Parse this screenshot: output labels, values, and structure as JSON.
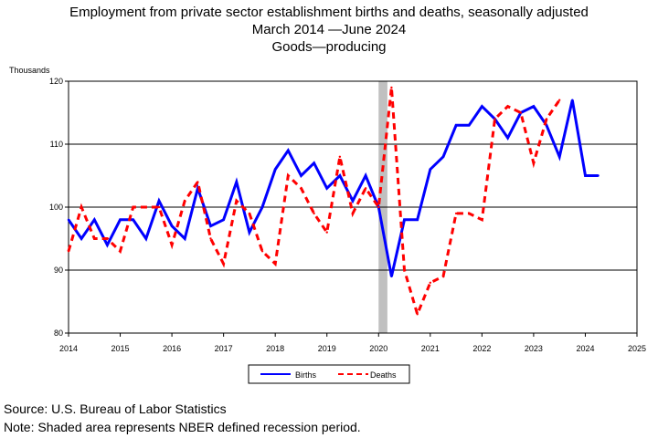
{
  "chart_data": {
    "type": "line",
    "title": "Employment from private sector establishment births and deaths, seasonally adjusted",
    "subtitle": "March 2014 —June 2024",
    "subtitle2": "Goods—producing",
    "ylabel": "Thousands",
    "xlabel": "",
    "xlim": [
      2014.0,
      2025.0
    ],
    "ylim": [
      80,
      120
    ],
    "xticks": [
      "2014",
      "2015",
      "2016",
      "2017",
      "2018",
      "2019",
      "2020",
      "2021",
      "2022",
      "2023",
      "2024",
      "2025"
    ],
    "yticks": [
      "80",
      "90",
      "100",
      "110",
      "120"
    ],
    "grid": "horizontal",
    "legend_position": "bottom-center",
    "recession": {
      "start": 2020.0,
      "end": 2020.17,
      "color": "#c0c0c0"
    },
    "series": [
      {
        "name": "Births",
        "color": "#0000ff",
        "style": "solid",
        "x": [
          2014.0,
          2014.25,
          2014.5,
          2014.75,
          2015.0,
          2015.25,
          2015.5,
          2015.75,
          2016.0,
          2016.25,
          2016.5,
          2016.75,
          2017.0,
          2017.25,
          2017.5,
          2017.75,
          2018.0,
          2018.25,
          2018.5,
          2018.75,
          2019.0,
          2019.25,
          2019.5,
          2019.75,
          2020.0,
          2020.25,
          2020.5,
          2020.75,
          2021.0,
          2021.25,
          2021.5,
          2021.75,
          2022.0,
          2022.25,
          2022.5,
          2022.75,
          2023.0,
          2023.25,
          2023.5,
          2023.75,
          2024.0,
          2024.25
        ],
        "values": [
          98,
          95,
          98,
          94,
          98,
          98,
          95,
          101,
          97,
          95,
          103,
          97,
          98,
          104,
          96,
          100,
          106,
          109,
          105,
          107,
          103,
          105,
          101,
          105,
          100,
          89,
          98,
          98,
          106,
          108,
          113,
          113,
          116,
          114,
          111,
          115,
          116,
          113,
          108,
          117,
          105,
          105
        ]
      },
      {
        "name": "Deaths",
        "color": "#ff0000",
        "style": "dashed",
        "x": [
          2014.0,
          2014.25,
          2014.5,
          2014.75,
          2015.0,
          2015.25,
          2015.5,
          2015.75,
          2016.0,
          2016.25,
          2016.5,
          2016.75,
          2017.0,
          2017.25,
          2017.5,
          2017.75,
          2018.0,
          2018.25,
          2018.5,
          2018.75,
          2019.0,
          2019.25,
          2019.5,
          2019.75,
          2020.0,
          2020.25,
          2020.5,
          2020.75,
          2021.0,
          2021.25,
          2021.5,
          2021.75,
          2022.0,
          2022.25,
          2022.5,
          2022.75,
          2023.0,
          2023.25,
          2023.5
        ],
        "values": [
          93,
          100,
          95,
          95,
          93,
          100,
          100,
          100,
          94,
          101,
          104,
          95,
          91,
          101,
          99,
          93,
          91,
          105,
          103,
          99,
          96,
          108,
          99,
          103,
          100,
          119,
          90,
          83,
          88,
          89,
          99,
          99,
          98,
          114,
          116,
          115,
          107,
          114,
          117
        ]
      }
    ]
  },
  "footer": {
    "source": "Source: U.S. Bureau of Labor Statistics",
    "note": "Note: Shaded area represents NBER defined recession period."
  }
}
